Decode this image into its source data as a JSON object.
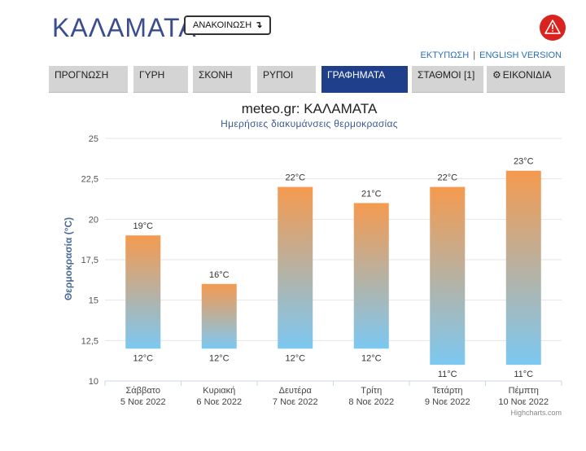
{
  "header": {
    "city": "ΚΑΛΑΜΑΤΑ",
    "announce_label": "ΑΝΑΚΟΙΝΩΣΗ",
    "announce_arrow": "↴",
    "print_link": "ΕΚΤΥΠΩΣΗ",
    "link_separator": "|",
    "english_link": "ENGLISH VERSION",
    "warning_icon": "warning-triangle-icon",
    "warning_color": "#d9231e"
  },
  "tabs": [
    {
      "label": "ΠΡΟΓΝΩΣΗ"
    },
    {
      "label": "ΓΥΡΗ"
    },
    {
      "label": "ΣΚΟΝΗ"
    },
    {
      "label": "ΡΥΠΟΙ"
    },
    {
      "label": "ΓΡΑΦΗΜΑΤΑ",
      "active": true
    },
    {
      "label": "ΣΤΑΘΜΟΙ [1]"
    },
    {
      "label": "ΕΙΚΟΝΙΔΙΑ",
      "icon": "gear-icon"
    }
  ],
  "accent_color": "#203f8a",
  "credits": "Highcharts.com",
  "chart_data": {
    "type": "columnrange",
    "title": "meteo.gr: ΚΑΛΑΜΑΤΑ",
    "subtitle": "Ημερήσιες διακυμάνσεις θερμοκρασίας",
    "ylabel": "Θερμοκρασία (°C)",
    "ylim": [
      10,
      25
    ],
    "yticks": [
      "10",
      "12,5",
      "15",
      "17,5",
      "20",
      "22,5",
      "25"
    ],
    "grid": true,
    "categories": [
      {
        "day": "Σάββατο",
        "date": "5 Νοε 2022"
      },
      {
        "day": "Κυριακή",
        "date": "6 Νοε 2022"
      },
      {
        "day": "Δευτέρα",
        "date": "7 Νοε 2022"
      },
      {
        "day": "Τρίτη",
        "date": "8 Νοε 2022"
      },
      {
        "day": "Τετάρτη",
        "date": "9 Νοε 2022"
      },
      {
        "day": "Πέμπτη",
        "date": "10 Νοε 2022"
      }
    ],
    "low": [
      12,
      12,
      12,
      12,
      11,
      11
    ],
    "high": [
      19,
      16,
      22,
      21,
      22,
      23
    ],
    "low_labels": [
      "12°C",
      "12°C",
      "12°C",
      "12°C",
      "11°C",
      "11°C"
    ],
    "high_labels": [
      "19°C",
      "16°C",
      "22°C",
      "21°C",
      "22°C",
      "23°C"
    ],
    "gradient": {
      "top": "#f59a4f",
      "bottom": "#7cc8f2"
    }
  }
}
